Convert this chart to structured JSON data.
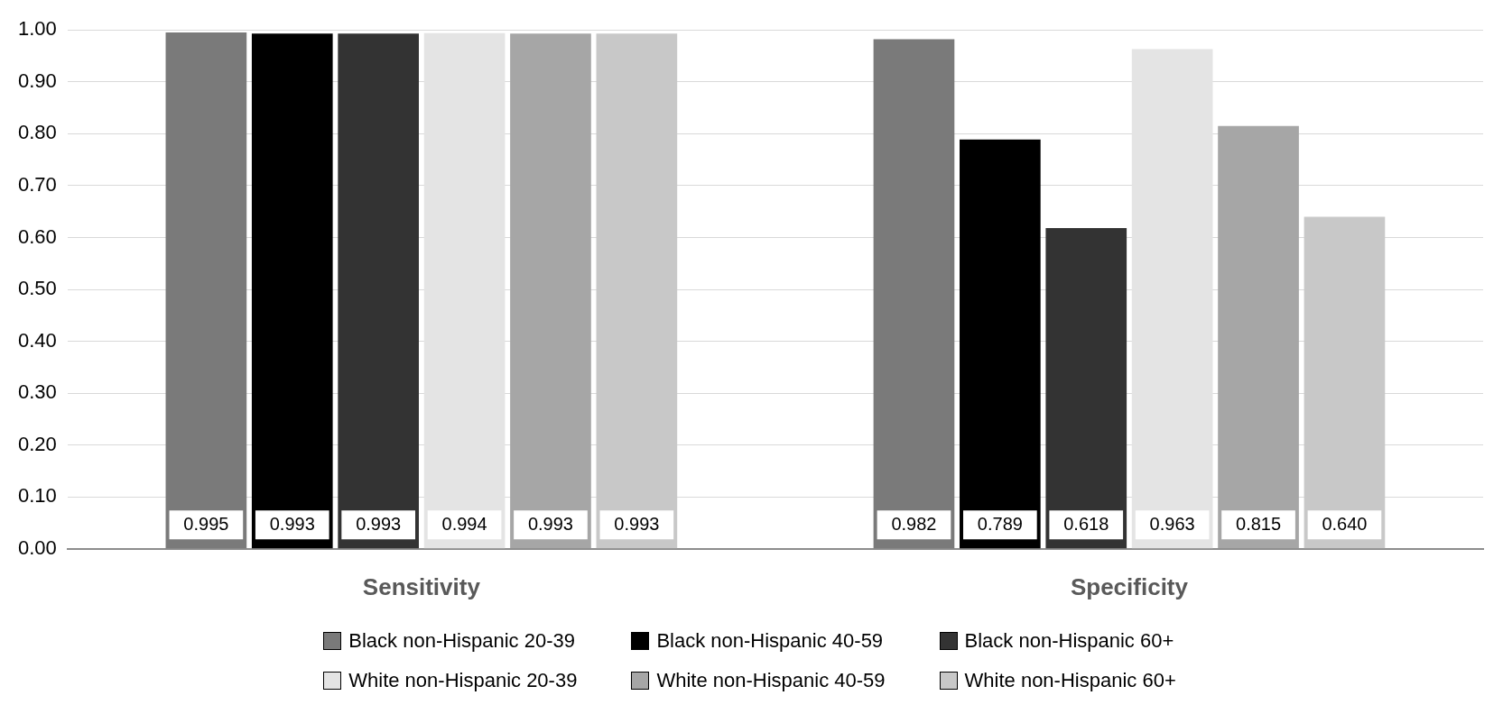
{
  "chart_data": {
    "type": "bar",
    "categories": [
      "Sensitivity",
      "Specificity"
    ],
    "series": [
      {
        "name": "Black non-Hispanic 20-39",
        "color": "#7a7a7a",
        "values": [
          0.995,
          0.982
        ],
        "value_labels": [
          "0.995",
          "0.982"
        ]
      },
      {
        "name": "Black non-Hispanic 40-59",
        "color": "#000000",
        "values": [
          0.993,
          0.789
        ],
        "value_labels": [
          "0.993",
          "0.789"
        ]
      },
      {
        "name": "Black non-Hispanic 60+",
        "color": "#333333",
        "values": [
          0.993,
          0.618
        ],
        "value_labels": [
          "0.993",
          "0.618"
        ]
      },
      {
        "name": "White non-Hispanic 20-39",
        "color": "#e4e4e4",
        "values": [
          0.994,
          0.963
        ],
        "value_labels": [
          "0.994",
          "0.963"
        ]
      },
      {
        "name": "White non-Hispanic 40-59",
        "color": "#a6a6a6",
        "values": [
          0.993,
          0.815
        ],
        "value_labels": [
          "0.993",
          "0.815"
        ]
      },
      {
        "name": "White non-Hispanic 60+",
        "color": "#c8c8c8",
        "values": [
          0.993,
          0.64
        ],
        "value_labels": [
          "0.993",
          "0.640"
        ]
      }
    ],
    "ylim": [
      0,
      1
    ],
    "yticks": [
      {
        "value": 0,
        "label": "0.00"
      },
      {
        "value": 0.1,
        "label": "0.10"
      },
      {
        "value": 0.2,
        "label": "0.20"
      },
      {
        "value": 0.3,
        "label": "0.30"
      },
      {
        "value": 0.4,
        "label": "0.40"
      },
      {
        "value": 0.5,
        "label": "0.50"
      },
      {
        "value": 0.6,
        "label": "0.60"
      },
      {
        "value": 0.7,
        "label": "0.70"
      },
      {
        "value": 0.8,
        "label": "0.80"
      },
      {
        "value": 0.9,
        "label": "0.90"
      },
      {
        "value": 1,
        "label": "1.00"
      }
    ],
    "grid": "y",
    "legend": "bottom"
  }
}
